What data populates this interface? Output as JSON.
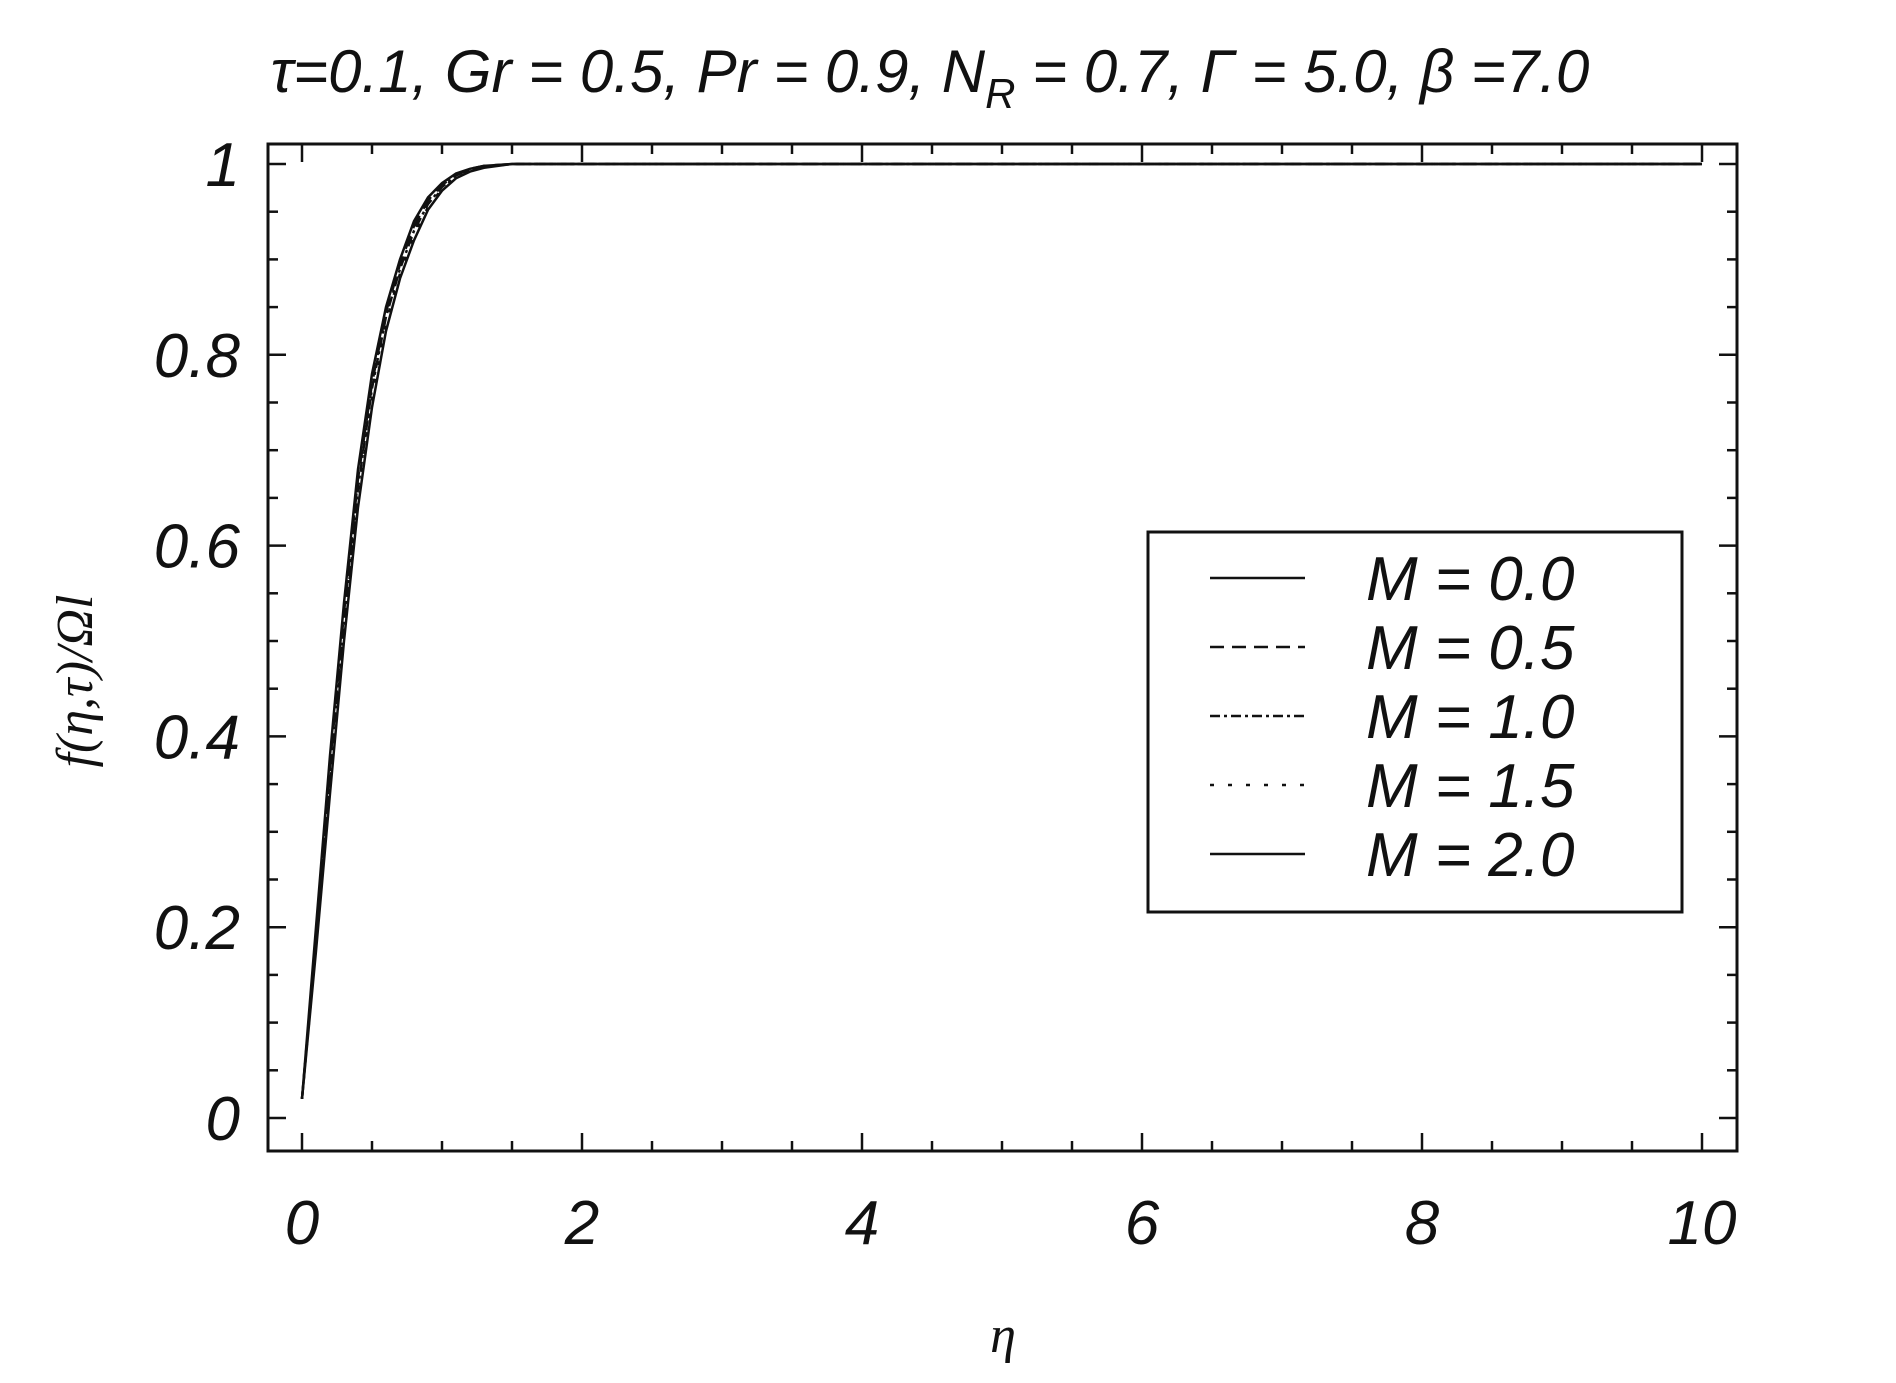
{
  "chart_data": {
    "type": "line",
    "title": "τ=0.1, Gr = 0.5, Pr = 0.9, N_R = 0.7, Γ = 5.0, β =7.0",
    "title_parts": {
      "pre": "τ=0.1, Gr = 0.5, Pr = 0.9, N",
      "sub": "R",
      "post": " = 0.7, Γ = 5.0, β =7.0"
    },
    "xlabel": "η",
    "ylabel": "f(η,τ)/Ωl",
    "xlim": [
      0,
      10
    ],
    "ylim": [
      0,
      1
    ],
    "x_ticks": [
      "0",
      "2",
      "4",
      "6",
      "8",
      "10"
    ],
    "y_ticks": [
      "0",
      "0.2",
      "0.4",
      "0.6",
      "0.8",
      "1"
    ],
    "grid": false,
    "legend_position": "center-right",
    "series": [
      {
        "name": "M = 0.0",
        "style": "solid",
        "x": [
          0,
          0.1,
          0.2,
          0.3,
          0.4,
          0.5,
          0.6,
          0.7,
          0.8,
          0.9,
          1.0,
          1.1,
          1.2,
          1.3,
          1.5,
          2,
          3,
          4,
          5,
          6,
          7,
          8,
          9,
          10
        ],
        "y": [
          0.02,
          0.2,
          0.38,
          0.54,
          0.68,
          0.78,
          0.85,
          0.9,
          0.94,
          0.965,
          0.98,
          0.99,
          0.995,
          0.998,
          1.0,
          1.0,
          1.0,
          1.0,
          1.0,
          1.0,
          1.0,
          1.0,
          1.0,
          1.0
        ]
      },
      {
        "name": "M = 0.5",
        "style": "dashed",
        "x": [
          0,
          0.1,
          0.2,
          0.3,
          0.4,
          0.5,
          0.6,
          0.7,
          0.8,
          0.9,
          1.0,
          1.1,
          1.2,
          1.3,
          1.5,
          2,
          3,
          4,
          5,
          6,
          7,
          8,
          9,
          10
        ],
        "y": [
          0.02,
          0.19,
          0.37,
          0.53,
          0.67,
          0.77,
          0.845,
          0.895,
          0.935,
          0.962,
          0.978,
          0.989,
          0.995,
          0.998,
          1.0,
          1.0,
          1.0,
          1.0,
          1.0,
          1.0,
          1.0,
          1.0,
          1.0,
          1.0
        ]
      },
      {
        "name": "M = 1.0",
        "style": "dashdot",
        "x": [
          0,
          0.1,
          0.2,
          0.3,
          0.4,
          0.5,
          0.6,
          0.7,
          0.8,
          0.9,
          1.0,
          1.1,
          1.2,
          1.3,
          1.5,
          2,
          3,
          4,
          5,
          6,
          7,
          8,
          9,
          10
        ],
        "y": [
          0.02,
          0.185,
          0.36,
          0.52,
          0.66,
          0.765,
          0.84,
          0.89,
          0.93,
          0.958,
          0.976,
          0.988,
          0.994,
          0.997,
          1.0,
          1.0,
          1.0,
          1.0,
          1.0,
          1.0,
          1.0,
          1.0,
          1.0,
          1.0
        ]
      },
      {
        "name": "M = 1.5",
        "style": "dotted",
        "x": [
          0,
          0.1,
          0.2,
          0.3,
          0.4,
          0.5,
          0.6,
          0.7,
          0.8,
          0.9,
          1.0,
          1.1,
          1.2,
          1.3,
          1.5,
          2,
          3,
          4,
          5,
          6,
          7,
          8,
          9,
          10
        ],
        "y": [
          0.02,
          0.18,
          0.35,
          0.51,
          0.65,
          0.755,
          0.835,
          0.885,
          0.925,
          0.955,
          0.974,
          0.987,
          0.993,
          0.997,
          1.0,
          1.0,
          1.0,
          1.0,
          1.0,
          1.0,
          1.0,
          1.0,
          1.0,
          1.0
        ]
      },
      {
        "name": "M = 2.0",
        "style": "solid",
        "x": [
          0,
          0.1,
          0.2,
          0.3,
          0.4,
          0.5,
          0.6,
          0.7,
          0.8,
          0.9,
          1.0,
          1.1,
          1.2,
          1.3,
          1.5,
          2,
          3,
          4,
          5,
          6,
          7,
          8,
          9,
          10
        ],
        "y": [
          0.02,
          0.175,
          0.34,
          0.5,
          0.64,
          0.745,
          0.825,
          0.88,
          0.92,
          0.952,
          0.972,
          0.985,
          0.992,
          0.996,
          1.0,
          1.0,
          1.0,
          1.0,
          1.0,
          1.0,
          1.0,
          1.0,
          1.0,
          1.0
        ]
      }
    ]
  }
}
